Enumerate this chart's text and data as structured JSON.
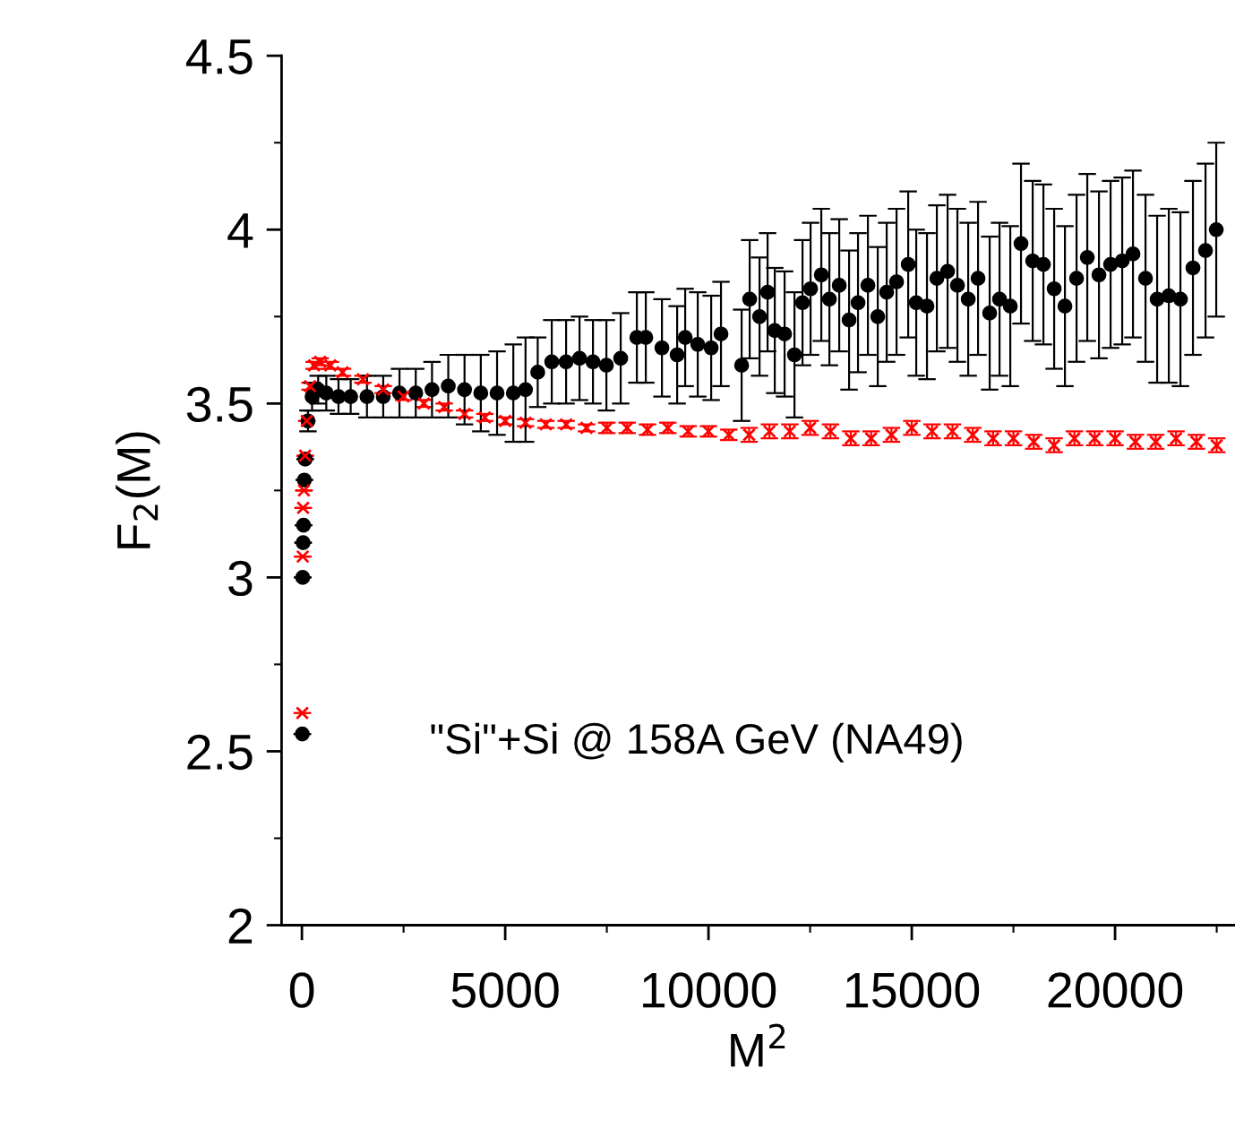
{
  "chart_data": {
    "type": "scatter",
    "xlabel": "M$^{2}$",
    "ylabel": "F$_{2}$(M)",
    "annotations": [
      "\"Si\"+Si @ 158A GeV (NA49)"
    ],
    "xlim": [
      -500,
      22950
    ],
    "ylim": [
      2,
      4.5
    ],
    "xticks": [
      0,
      5000,
      10000,
      15000,
      20000,
      {
        "value": 2500,
        "label": null
      },
      {
        "value": 7500,
        "label": null
      },
      {
        "value": 12500,
        "label": null
      },
      {
        "value": 17500,
        "label": null
      },
      {
        "value": 22500,
        "label": null
      }
    ],
    "yticks": [
      2,
      2.5,
      3,
      3.5,
      4,
      4.5,
      {
        "value": 2.25,
        "label": null
      },
      {
        "value": 2.75,
        "label": null
      },
      {
        "value": 3.25,
        "label": null
      },
      {
        "value": 3.75,
        "label": null
      },
      {
        "value": 4.25,
        "label": null
      }
    ],
    "grid": false,
    "legend": false,
    "series": [
      {
        "color": "#ff0000",
        "marker": "cross",
        "x": [
          10,
          20,
          30,
          50,
          80,
          120,
          200,
          300,
          450,
          700,
          1000,
          1500,
          2000,
          2500,
          3000,
          3500,
          4000,
          4500,
          5000,
          5500,
          6000,
          6500,
          7000,
          7500,
          8000,
          8500,
          9000,
          9500,
          10000,
          10500,
          11000,
          11500,
          12000,
          12500,
          13000,
          13500,
          14000,
          14500,
          15000,
          15500,
          16000,
          16500,
          17000,
          17500,
          18000,
          18500,
          19000,
          19500,
          20000,
          20500,
          21000,
          21500,
          22000,
          22500
        ],
        "values": [
          2.61,
          3.06,
          3.2,
          3.25,
          3.35,
          3.45,
          3.55,
          3.61,
          3.62,
          3.61,
          3.59,
          3.57,
          3.54,
          3.52,
          3.5,
          3.49,
          3.47,
          3.46,
          3.45,
          3.445,
          3.44,
          3.44,
          3.43,
          3.43,
          3.43,
          3.425,
          3.43,
          3.42,
          3.42,
          3.41,
          3.41,
          3.42,
          3.42,
          3.43,
          3.42,
          3.4,
          3.4,
          3.41,
          3.43,
          3.42,
          3.42,
          3.41,
          3.4,
          3.4,
          3.39,
          3.38,
          3.4,
          3.4,
          3.4,
          3.39,
          3.39,
          3.4,
          3.39,
          3.38
        ],
        "errors": [
          null,
          null,
          null,
          null,
          null,
          null,
          0.01,
          0.01,
          0.01,
          0.01,
          0.01,
          0.01,
          0.01,
          0.01,
          0.01,
          0.01,
          0.01,
          0.01,
          0.01,
          0.01,
          0.01,
          0.01,
          0.01,
          0.015,
          0.015,
          0.015,
          0.015,
          0.015,
          0.015,
          0.015,
          0.02,
          0.02,
          0.02,
          0.02,
          0.02,
          0.02,
          0.02,
          0.02,
          0.02,
          0.02,
          0.02,
          0.02,
          0.02,
          0.02,
          0.02,
          0.02,
          0.02,
          0.02,
          0.02,
          0.02,
          0.02,
          0.02,
          0.02,
          0.02
        ]
      },
      {
        "color": "#000000",
        "marker": "circle",
        "x": [
          10,
          20,
          30,
          40,
          60,
          80,
          150,
          250,
          400,
          600,
          900,
          1200,
          1600,
          2000,
          2400,
          2800,
          3200,
          3600,
          4000,
          4400,
          4800,
          5200,
          5500,
          5800,
          6145,
          6498,
          6828,
          7159,
          7489,
          7841,
          8238,
          8458,
          8855,
          9229,
          9427,
          9736,
          10066,
          10308,
          10815,
          11013,
          11256,
          11454,
          11630,
          11872,
          12115,
          12313,
          12511,
          12775,
          12974,
          13216,
          13458,
          13678,
          13921,
          14163,
          14383,
          14626,
          14912,
          15110,
          15374,
          15617,
          15881,
          16123,
          16388,
          16630,
          16916,
          17159,
          17423,
          17687,
          17974,
          18238,
          18502,
          18767,
          19053,
          19317,
          19604,
          19890,
          20176,
          20441,
          20749,
          21035,
          21322,
          21608,
          21916,
          22225,
          22489
        ],
        "values": [
          2.55,
          3.0,
          3.1,
          3.15,
          3.28,
          3.34,
          3.45,
          3.52,
          3.54,
          3.53,
          3.52,
          3.52,
          3.52,
          3.52,
          3.53,
          3.53,
          3.54,
          3.55,
          3.54,
          3.53,
          3.53,
          3.53,
          3.54,
          3.59,
          3.62,
          3.62,
          3.63,
          3.62,
          3.61,
          3.63,
          3.69,
          3.69,
          3.66,
          3.64,
          3.69,
          3.67,
          3.66,
          3.7,
          3.61,
          3.8,
          3.75,
          3.82,
          3.71,
          3.7,
          3.64,
          3.79,
          3.83,
          3.87,
          3.8,
          3.84,
          3.74,
          3.79,
          3.84,
          3.75,
          3.82,
          3.85,
          3.9,
          3.79,
          3.78,
          3.86,
          3.88,
          3.84,
          3.8,
          3.86,
          3.76,
          3.8,
          3.78,
          3.96,
          3.91,
          3.9,
          3.83,
          3.78,
          3.86,
          3.92,
          3.87,
          3.9,
          3.91,
          3.93,
          3.86,
          3.8,
          3.81,
          3.8,
          3.89,
          3.94,
          4.0
        ],
        "errors": [
          null,
          null,
          null,
          null,
          null,
          null,
          0.03,
          0.04,
          0.04,
          0.05,
          0.05,
          0.05,
          0.06,
          0.06,
          0.07,
          0.07,
          0.08,
          0.09,
          0.1,
          0.11,
          0.12,
          0.14,
          0.15,
          0.1,
          0.12,
          0.12,
          0.12,
          0.12,
          0.13,
          0.13,
          0.13,
          0.13,
          0.14,
          0.14,
          0.14,
          0.15,
          0.15,
          0.15,
          0.16,
          0.17,
          0.17,
          0.17,
          0.18,
          0.18,
          0.18,
          0.18,
          0.19,
          0.19,
          0.19,
          0.19,
          0.2,
          0.2,
          0.2,
          0.2,
          0.2,
          0.21,
          0.21,
          0.21,
          0.21,
          0.21,
          0.22,
          0.22,
          0.22,
          0.22,
          0.22,
          0.22,
          0.23,
          0.23,
          0.23,
          0.23,
          0.23,
          0.23,
          0.24,
          0.24,
          0.24,
          0.24,
          0.24,
          0.24,
          0.24,
          0.24,
          0.25,
          0.25,
          0.25,
          0.25,
          0.25
        ]
      }
    ]
  }
}
